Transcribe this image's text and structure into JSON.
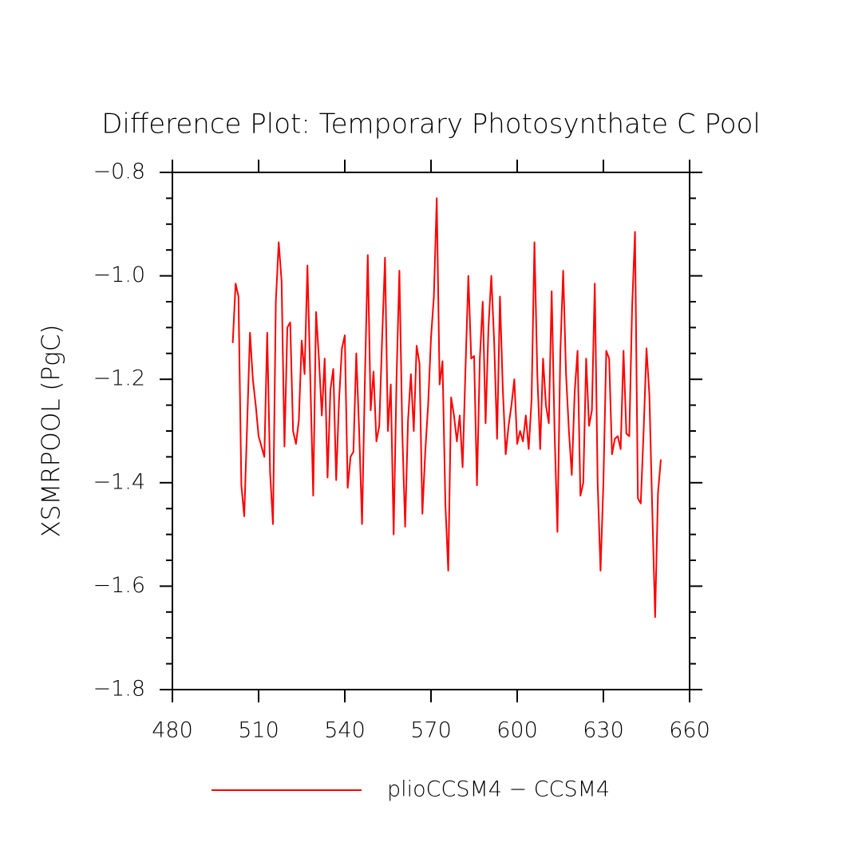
{
  "chart_data": {
    "type": "line",
    "title": "Difference Plot: Temporary Photosynthate C Pool",
    "ylabel": "XSMRPOOL  (PgC)",
    "x": [
      501,
      502,
      503,
      504,
      505,
      506,
      507,
      508,
      509,
      510,
      511,
      512,
      513,
      514,
      515,
      516,
      517,
      518,
      519,
      520,
      521,
      522,
      523,
      524,
      525,
      526,
      527,
      528,
      529,
      530,
      531,
      532,
      533,
      534,
      535,
      536,
      537,
      538,
      539,
      540,
      541,
      542,
      543,
      544,
      545,
      546,
      547,
      548,
      549,
      550,
      551,
      552,
      553,
      554,
      555,
      556,
      557,
      558,
      559,
      560,
      561,
      562,
      563,
      564,
      565,
      566,
      567,
      568,
      569,
      570,
      571,
      572,
      573,
      574,
      575,
      576,
      577,
      578,
      579,
      580,
      581,
      582,
      583,
      584,
      585,
      586,
      587,
      588,
      589,
      590,
      591,
      592,
      593,
      594,
      595,
      596,
      597,
      598,
      599,
      600,
      601,
      602,
      603,
      604,
      605,
      606,
      607,
      608,
      609,
      610,
      611,
      612,
      613,
      614,
      615,
      616,
      617,
      618,
      619,
      620,
      621,
      622,
      623,
      624,
      625,
      626,
      627,
      628,
      629,
      630,
      631,
      632,
      633,
      634,
      635,
      636,
      637,
      638,
      639,
      640,
      641,
      642,
      643,
      644,
      645,
      646,
      647,
      648,
      649,
      650
    ],
    "series": [
      {
        "name": "plioCCSM4 − CCSM4",
        "color": "#ff0000",
        "values": [
          -1.13,
          -1.015,
          -1.04,
          -1.405,
          -1.465,
          -1.29,
          -1.11,
          -1.2,
          -1.25,
          -1.31,
          -1.33,
          -1.35,
          -1.11,
          -1.38,
          -1.48,
          -1.05,
          -0.935,
          -1.01,
          -1.33,
          -1.1,
          -1.09,
          -1.3,
          -1.325,
          -1.28,
          -1.125,
          -1.19,
          -0.98,
          -1.2,
          -1.425,
          -1.07,
          -1.16,
          -1.27,
          -1.16,
          -1.39,
          -1.22,
          -1.18,
          -1.395,
          -1.24,
          -1.14,
          -1.115,
          -1.41,
          -1.35,
          -1.34,
          -1.15,
          -1.3,
          -1.48,
          -1.2,
          -0.96,
          -1.26,
          -1.185,
          -1.32,
          -1.29,
          -1.12,
          -0.965,
          -1.3,
          -1.21,
          -1.5,
          -1.2,
          -0.99,
          -1.3,
          -1.485,
          -1.28,
          -1.19,
          -1.3,
          -1.135,
          -1.17,
          -1.46,
          -1.34,
          -1.25,
          -1.12,
          -1.04,
          -0.85,
          -1.21,
          -1.165,
          -1.44,
          -1.57,
          -1.235,
          -1.27,
          -1.32,
          -1.27,
          -1.37,
          -1.18,
          -1.0,
          -1.16,
          -1.155,
          -1.405,
          -1.16,
          -1.05,
          -1.285,
          -1.1,
          -1.0,
          -1.13,
          -1.315,
          -1.04,
          -1.22,
          -1.345,
          -1.29,
          -1.25,
          -1.2,
          -1.325,
          -1.3,
          -1.32,
          -1.27,
          -1.335,
          -1.24,
          -0.935,
          -1.19,
          -1.335,
          -1.16,
          -1.25,
          -1.285,
          -1.03,
          -1.3,
          -1.495,
          -1.15,
          -0.99,
          -1.19,
          -1.3,
          -1.385,
          -1.225,
          -1.145,
          -1.425,
          -1.4,
          -1.16,
          -1.29,
          -1.26,
          -1.015,
          -1.4,
          -1.57,
          -1.4,
          -1.145,
          -1.16,
          -1.345,
          -1.315,
          -1.31,
          -1.335,
          -1.145,
          -1.305,
          -1.31,
          -1.06,
          -0.915,
          -1.43,
          -1.44,
          -1.3,
          -1.14,
          -1.23,
          -1.45,
          -1.66,
          -1.42,
          -1.355
        ]
      }
    ],
    "xlim": [
      480,
      660
    ],
    "xticks": [
      480,
      510,
      540,
      570,
      600,
      630,
      660
    ],
    "ylim": [
      -1.8,
      -0.8
    ],
    "yticks": [
      {
        "value": -1.8,
        "label": "−1.8"
      },
      {
        "value": -1.6,
        "label": "−1.6"
      },
      {
        "value": -1.4,
        "label": "−1.4"
      },
      {
        "value": -1.2,
        "label": "−1.2"
      },
      {
        "value": -1.0,
        "label": "−1.0"
      },
      {
        "value": -0.8,
        "label": "−0.8"
      }
    ],
    "legend": "bottom"
  }
}
